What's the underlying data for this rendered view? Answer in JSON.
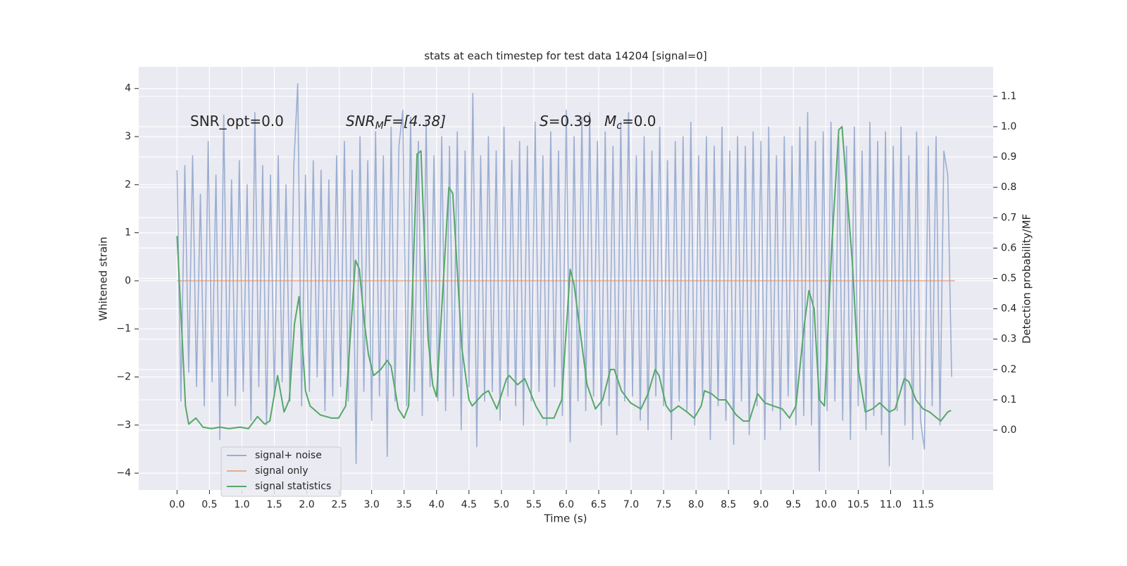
{
  "chart_data": {
    "type": "line",
    "title": "stats at each timestep for test data 14204 [signal=0]",
    "xlabel": "Time (s)",
    "ylabel": "Whitened strain",
    "y2label": "Detection probability/MF",
    "annotations": [
      [
        "SNR_opt=0.0"
      ],
      [
        "SNR",
        "M",
        "F=[4.38]"
      ],
      [
        "S",
        "=0.39",
        "M",
        "c",
        "=0.0"
      ]
    ],
    "xlim": [
      -0.59,
      12.58
    ],
    "ylim": [
      -4.35,
      4.45
    ],
    "y2lim": [
      -0.197,
      1.197
    ],
    "xticks": [
      {
        "value": 0,
        "label": "0.0"
      },
      {
        "value": 0.5,
        "label": "0.5"
      },
      {
        "value": 1,
        "label": "1.0"
      },
      {
        "value": 1.5,
        "label": "1.5"
      },
      {
        "value": 2,
        "label": "2.0"
      },
      {
        "value": 2.5,
        "label": "2.5"
      },
      {
        "value": 3,
        "label": "3.0"
      },
      {
        "value": 3.5,
        "label": "3.5"
      },
      {
        "value": 4,
        "label": "4.0"
      },
      {
        "value": 4.5,
        "label": "4.5"
      },
      {
        "value": 5,
        "label": "5.0"
      },
      {
        "value": 5.5,
        "label": "5.5"
      },
      {
        "value": 6,
        "label": "6.0"
      },
      {
        "value": 6.5,
        "label": "6.5"
      },
      {
        "value": 7,
        "label": "7.0"
      },
      {
        "value": 7.5,
        "label": "7.5"
      },
      {
        "value": 8,
        "label": "8.0"
      },
      {
        "value": 8.5,
        "label": "8.5"
      },
      {
        "value": 9,
        "label": "9.0"
      },
      {
        "value": 9.5,
        "label": "9.5"
      },
      {
        "value": 10,
        "label": "10.0"
      },
      {
        "value": 10.5,
        "label": "10.5"
      },
      {
        "value": 11,
        "label": "11.0"
      },
      {
        "value": 11.5,
        "label": "11.5"
      }
    ],
    "yticks": [
      {
        "value": -4,
        "label": "−4"
      },
      {
        "value": -3,
        "label": "−3"
      },
      {
        "value": -2,
        "label": "−2"
      },
      {
        "value": -1,
        "label": "−1"
      },
      0,
      1,
      2,
      3,
      4
    ],
    "y2ticks": [
      {
        "value": 0,
        "label": "0.0"
      },
      {
        "value": 0.1,
        "label": "0.1"
      },
      {
        "value": 0.2,
        "label": "0.2"
      },
      {
        "value": 0.3,
        "label": "0.3"
      },
      {
        "value": 0.4,
        "label": "0.4"
      },
      {
        "value": 0.5,
        "label": "0.5"
      },
      {
        "value": 0.6,
        "label": "0.6"
      },
      {
        "value": 0.7,
        "label": "0.7"
      },
      {
        "value": 0.8,
        "label": "0.8"
      },
      {
        "value": 0.9,
        "label": "0.9"
      },
      {
        "value": 1,
        "label": "1.0"
      },
      {
        "value": 1.1,
        "label": "1.1"
      }
    ],
    "grid": true,
    "legend": "lower left",
    "series": [
      {
        "name": "signal+ noise",
        "color": "#4c72b0",
        "x": [
          0,
          0.06,
          0.12,
          0.18,
          0.24,
          0.3,
          0.36,
          0.42,
          0.48,
          0.54,
          0.6,
          0.66,
          0.72,
          0.78,
          0.84,
          0.9,
          0.96,
          1.02,
          1.08,
          1.14,
          1.2,
          1.26,
          1.32,
          1.38,
          1.44,
          1.5,
          1.56,
          1.62,
          1.68,
          1.74,
          1.8,
          1.86,
          1.92,
          1.98,
          2.04,
          2.1,
          2.16,
          2.22,
          2.28,
          2.34,
          2.4,
          2.46,
          2.52,
          2.58,
          2.64,
          2.7,
          2.76,
          2.82,
          2.88,
          2.94,
          3.0,
          3.06,
          3.12,
          3.18,
          3.24,
          3.3,
          3.36,
          3.42,
          3.48,
          3.54,
          3.6,
          3.66,
          3.72,
          3.78,
          3.84,
          3.9,
          3.96,
          4.02,
          4.08,
          4.14,
          4.2,
          4.26,
          4.32,
          4.38,
          4.44,
          4.5,
          4.56,
          4.62,
          4.68,
          4.74,
          4.8,
          4.86,
          4.92,
          4.98,
          5.04,
          5.1,
          5.16,
          5.22,
          5.28,
          5.34,
          5.4,
          5.46,
          5.52,
          5.58,
          5.64,
          5.7,
          5.76,
          5.82,
          5.88,
          5.94,
          6.0,
          6.06,
          6.12,
          6.18,
          6.24,
          6.3,
          6.36,
          6.42,
          6.48,
          6.54,
          6.6,
          6.66,
          6.72,
          6.78,
          6.84,
          6.9,
          6.96,
          7.02,
          7.08,
          7.14,
          7.2,
          7.26,
          7.32,
          7.38,
          7.44,
          7.5,
          7.56,
          7.62,
          7.68,
          7.74,
          7.8,
          7.86,
          7.92,
          7.98,
          8.04,
          8.1,
          8.16,
          8.22,
          8.28,
          8.34,
          8.4,
          8.46,
          8.52,
          8.58,
          8.64,
          8.7,
          8.76,
          8.82,
          8.88,
          8.94,
          9.0,
          9.06,
          9.12,
          9.18,
          9.24,
          9.3,
          9.36,
          9.42,
          9.48,
          9.54,
          9.6,
          9.66,
          9.72,
          9.78,
          9.84,
          9.9,
          9.96,
          10.02,
          10.08,
          10.14,
          10.2,
          10.26,
          10.32,
          10.38,
          10.44,
          10.5,
          10.56,
          10.62,
          10.68,
          10.74,
          10.8,
          10.86,
          10.92,
          10.98,
          11.04,
          11.1,
          11.16,
          11.22,
          11.28,
          11.34,
          11.4,
          11.46,
          11.52,
          11.58,
          11.64,
          11.7,
          11.76,
          11.82,
          11.88,
          11.94
        ],
        "values": [
          2.3,
          -2.5,
          2.4,
          -1.9,
          2.6,
          -2.2,
          1.8,
          -2.6,
          2.9,
          -2.1,
          2.2,
          -3.3,
          3.45,
          -2.4,
          2.1,
          -2.6,
          2.5,
          -2.3,
          2.0,
          -2.9,
          3.5,
          -2.2,
          2.4,
          -3.0,
          2.2,
          -2.4,
          2.6,
          -2.1,
          2.0,
          -2.5,
          2.4,
          4.1,
          -2.6,
          2.2,
          -2.3,
          2.5,
          -2.0,
          2.3,
          -2.7,
          2.1,
          -2.4,
          2.6,
          -2.2,
          2.9,
          -2.5,
          2.3,
          -3.8,
          3.0,
          -2.3,
          2.5,
          -2.9,
          3.1,
          -2.4,
          2.6,
          -3.65,
          3.2,
          -2.5,
          2.8,
          3.55,
          -2.6,
          3.4,
          -2.3,
          2.9,
          -2.8,
          3.3,
          -2.2,
          2.6,
          -2.5,
          3.0,
          -2.7,
          2.8,
          -2.4,
          3.1,
          -3.1,
          2.7,
          -2.2,
          3.9,
          -3.45,
          2.6,
          -2.5,
          3.0,
          -2.3,
          2.7,
          -2.9,
          3.2,
          -2.4,
          2.5,
          -2.6,
          2.9,
          -3.0,
          2.8,
          -2.5,
          3.3,
          -2.3,
          2.6,
          -3.0,
          3.1,
          -2.2,
          2.7,
          -2.8,
          3.55,
          -3.35,
          3.0,
          -2.5,
          3.4,
          -2.7,
          3.5,
          -2.4,
          2.9,
          -3.0,
          3.1,
          -2.6,
          2.8,
          -3.2,
          3.3,
          -2.5,
          3.5,
          -2.4,
          2.6,
          -2.9,
          3.0,
          -3.1,
          2.7,
          -2.4,
          3.2,
          -2.6,
          2.5,
          -3.3,
          2.9,
          -2.5,
          3.0,
          -2.7,
          3.3,
          -3.0,
          2.6,
          -2.4,
          3.0,
          -3.3,
          2.8,
          -2.6,
          3.2,
          -2.9,
          2.7,
          -3.4,
          3.0,
          -2.5,
          2.8,
          -3.2,
          3.1,
          -2.6,
          2.9,
          -3.3,
          3.2,
          -2.7,
          2.6,
          -3.1,
          3.0,
          -2.4,
          2.8,
          -3.0,
          3.2,
          -2.8,
          3.5,
          -3.0,
          2.9,
          -3.95,
          3.1,
          -2.7,
          3.3,
          -2.5,
          3.0,
          -2.9,
          2.8,
          -3.3,
          3.2,
          -2.6,
          2.7,
          -3.1,
          3.3,
          -2.8,
          2.9,
          -3.2,
          3.1,
          -3.85,
          2.8,
          -2.7,
          3.2,
          -3.0,
          2.6,
          -3.3,
          3.1,
          -2.9,
          -3.5,
          2.8,
          -2.6,
          3.0,
          -3.0,
          2.7,
          2.2,
          -2.0
        ]
      },
      {
        "name": "signal only",
        "color": "#dd8452",
        "x": [
          0,
          11.99
        ],
        "values": [
          0,
          0
        ]
      },
      {
        "name": "signal statistics",
        "color": "#55a868",
        "axis": "y2",
        "x": [
          0,
          0.08,
          0.13,
          0.18,
          0.29,
          0.4,
          0.53,
          0.66,
          0.8,
          0.97,
          1.1,
          1.24,
          1.35,
          1.43,
          1.55,
          1.65,
          1.73,
          1.81,
          1.88,
          1.98,
          2.05,
          2.21,
          2.38,
          2.49,
          2.6,
          2.75,
          2.81,
          2.89,
          2.95,
          3.03,
          3.14,
          3.24,
          3.3,
          3.41,
          3.5,
          3.57,
          3.7,
          3.76,
          3.87,
          3.94,
          4.0,
          4.19,
          4.25,
          4.39,
          4.5,
          4.55,
          4.72,
          4.8,
          4.93,
          5.08,
          5.12,
          5.25,
          5.36,
          5.53,
          5.64,
          5.81,
          5.93,
          6.06,
          6.12,
          6.32,
          6.45,
          6.56,
          6.68,
          6.74,
          6.85,
          6.99,
          7.15,
          7.26,
          7.37,
          7.43,
          7.54,
          7.61,
          7.73,
          7.86,
          7.97,
          8.08,
          8.13,
          8.24,
          8.35,
          8.46,
          8.62,
          8.73,
          8.82,
          8.95,
          9.06,
          9.19,
          9.33,
          9.44,
          9.54,
          9.67,
          9.74,
          9.82,
          9.9,
          9.98,
          10.09,
          10.2,
          10.25,
          10.41,
          10.5,
          10.61,
          10.72,
          10.83,
          10.98,
          11.07,
          11.21,
          11.28,
          11.39,
          11.5,
          11.6,
          11.77,
          11.88,
          11.93
        ],
        "values": [
          0.64,
          0.3,
          0.08,
          0.02,
          0.04,
          0.01,
          0.005,
          0.01,
          0.005,
          0.01,
          0.005,
          0.045,
          0.02,
          0.03,
          0.18,
          0.06,
          0.1,
          0.35,
          0.44,
          0.13,
          0.08,
          0.05,
          0.04,
          0.04,
          0.08,
          0.56,
          0.53,
          0.35,
          0.25,
          0.18,
          0.2,
          0.23,
          0.21,
          0.07,
          0.04,
          0.08,
          0.91,
          0.92,
          0.3,
          0.15,
          0.11,
          0.8,
          0.78,
          0.27,
          0.1,
          0.08,
          0.12,
          0.13,
          0.07,
          0.17,
          0.18,
          0.15,
          0.17,
          0.08,
          0.04,
          0.04,
          0.1,
          0.53,
          0.48,
          0.15,
          0.07,
          0.1,
          0.2,
          0.2,
          0.13,
          0.09,
          0.07,
          0.12,
          0.2,
          0.18,
          0.08,
          0.06,
          0.08,
          0.06,
          0.04,
          0.08,
          0.13,
          0.12,
          0.1,
          0.1,
          0.05,
          0.03,
          0.03,
          0.12,
          0.09,
          0.08,
          0.07,
          0.04,
          0.08,
          0.35,
          0.46,
          0.4,
          0.1,
          0.08,
          0.6,
          0.99,
          1.0,
          0.55,
          0.2,
          0.06,
          0.07,
          0.09,
          0.06,
          0.07,
          0.17,
          0.16,
          0.1,
          0.07,
          0.06,
          0.03,
          0.06,
          0.065
        ]
      }
    ]
  }
}
